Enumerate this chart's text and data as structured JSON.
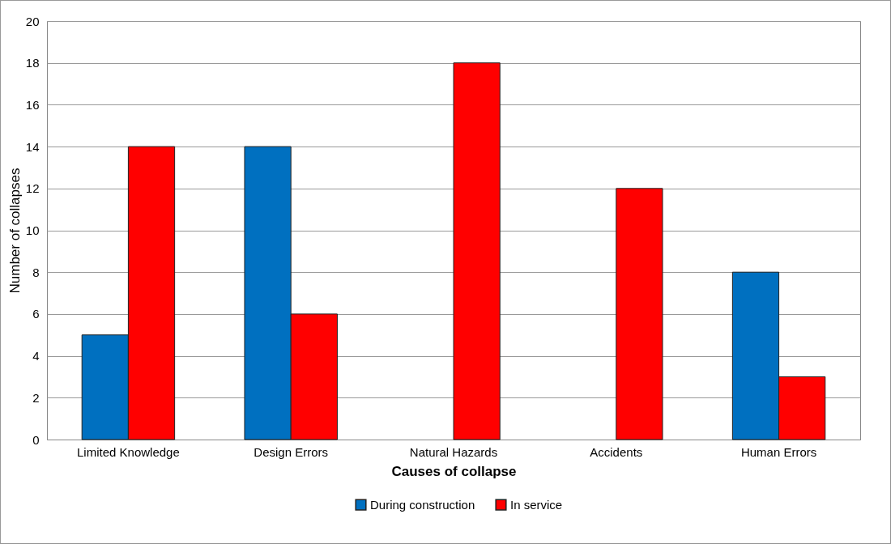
{
  "chart_data": {
    "type": "bar",
    "xlabel": "Causes of collapse",
    "ylabel": "Number of collapses",
    "categories": [
      "Limited Knowledge",
      "Design Errors",
      "Natural Hazards",
      "Accidents",
      "Human Errors"
    ],
    "series": [
      {
        "name": "During construction",
        "color": "#0070c0",
        "values": [
          5,
          14,
          null,
          null,
          8
        ]
      },
      {
        "name": "In service",
        "color": "#ff0000",
        "values": [
          14,
          6,
          18,
          12,
          3
        ]
      }
    ],
    "ylim": [
      0,
      20
    ],
    "yticks": [
      0,
      2,
      4,
      6,
      8,
      10,
      12,
      14,
      16,
      18,
      20
    ],
    "grid": "y",
    "legend": "bottom"
  }
}
